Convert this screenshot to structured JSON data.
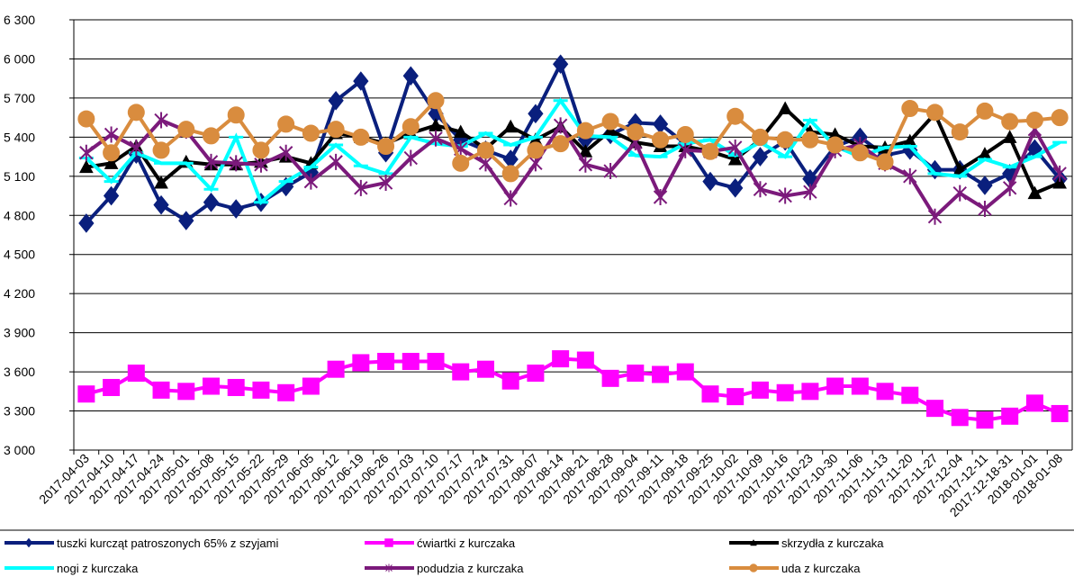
{
  "chart_data": {
    "type": "line",
    "categories": [
      "2017-04-03",
      "2017-04-10",
      "2017-04-17",
      "2017-04-24",
      "2017-05-01",
      "2017-05-08",
      "2017-05-15",
      "2017-05-22",
      "2017-05-29",
      "2017-06-05",
      "2017-06-12",
      "2017-06-19",
      "2017-06-26",
      "2017-07-03",
      "2017-07-10",
      "2017-07-17",
      "2017-07-24",
      "2017-07-31",
      "2017-08-07",
      "2017-08-14",
      "2017-08-21",
      "2017-08-28",
      "2017-09-04",
      "2017-09-11",
      "2017-09-18",
      "2017-09-25",
      "2017-10-02",
      "2017-10-09",
      "2017-10-16",
      "2017-10-23",
      "2017-10-30",
      "2017-11-06",
      "2017-11-13",
      "2017-11-20",
      "2017-11-27",
      "2017-12-04",
      "2017-12-11",
      "2017-12-18-31",
      "2018-01-01",
      "2018-01-08"
    ],
    "series": [
      {
        "name": "tuszki kurcząt patroszonych 65% z szyjami",
        "color": "#0a1f7d",
        "marker": "diamond",
        "values": [
          4740,
          4950,
          5270,
          4880,
          4760,
          4900,
          4850,
          4900,
          5020,
          5130,
          5680,
          5830,
          5280,
          5870,
          5580,
          5380,
          5300,
          5230,
          5580,
          5960,
          5380,
          5420,
          5510,
          5500,
          5350,
          5060,
          5010,
          5250,
          5370,
          5080,
          5330,
          5400,
          5260,
          5300,
          5150,
          5150,
          5030,
          5120,
          5310,
          5080
        ]
      },
      {
        "name": "ćwiartki z kurczaka",
        "color": "#ff00ff",
        "marker": "square",
        "values": [
          3430,
          3480,
          3590,
          3460,
          3450,
          3490,
          3480,
          3460,
          3440,
          3490,
          3620,
          3670,
          3680,
          3680,
          3680,
          3600,
          3620,
          3530,
          3590,
          3700,
          3690,
          3550,
          3590,
          3580,
          3600,
          3430,
          3410,
          3460,
          3440,
          3450,
          3490,
          3490,
          3450,
          3420,
          3320,
          3250,
          3230,
          3260,
          3360,
          3280
        ]
      },
      {
        "name": "skrzydła z kurczaka",
        "color": "#000000",
        "marker": "triangle",
        "values": [
          5170,
          5200,
          5330,
          5050,
          5210,
          5190,
          5190,
          5210,
          5250,
          5200,
          5430,
          5400,
          5350,
          5430,
          5490,
          5440,
          5310,
          5480,
          5380,
          5480,
          5290,
          5450,
          5360,
          5330,
          5330,
          5290,
          5230,
          5380,
          5620,
          5440,
          5420,
          5330,
          5320,
          5370,
          5580,
          5150,
          5270,
          5400,
          4970,
          5050
        ]
      },
      {
        "name": "nogi z kurczaka",
        "color": "#00ffff",
        "marker": "cross",
        "values": [
          5240,
          5060,
          5280,
          5200,
          5200,
          5000,
          5400,
          4900,
          5060,
          5170,
          5340,
          5180,
          5120,
          5400,
          5350,
          5330,
          5430,
          5340,
          5400,
          5680,
          5410,
          5400,
          5260,
          5250,
          5350,
          5380,
          5260,
          5360,
          5250,
          5530,
          5330,
          5250,
          5320,
          5330,
          5120,
          5100,
          5230,
          5170,
          5250,
          5360
        ]
      },
      {
        "name": "podudzia z kurczaka",
        "color": "#7b1a7b",
        "marker": "star",
        "values": [
          5280,
          5420,
          5320,
          5530,
          5450,
          5210,
          5200,
          5190,
          5280,
          5060,
          5210,
          5010,
          5050,
          5240,
          5390,
          5310,
          5200,
          4930,
          5200,
          5490,
          5190,
          5140,
          5360,
          4940,
          5300,
          5290,
          5320,
          5000,
          4950,
          4980,
          5300,
          5340,
          5200,
          5100,
          4790,
          4970,
          4850,
          5010,
          5460,
          5120
        ]
      },
      {
        "name": "uda z kurczaka",
        "color": "#d98c3e",
        "marker": "circle",
        "values": [
          5540,
          5280,
          5590,
          5300,
          5460,
          5410,
          5570,
          5300,
          5500,
          5430,
          5460,
          5400,
          5330,
          5480,
          5680,
          5200,
          5300,
          5120,
          5300,
          5350,
          5450,
          5520,
          5440,
          5380,
          5420,
          5290,
          5560,
          5400,
          5380,
          5380,
          5340,
          5280,
          5210,
          5620,
          5590,
          5440,
          5600,
          5520,
          5530,
          5550
        ]
      }
    ],
    "ylim": [
      3000,
      6300
    ],
    "yticks": [
      {
        "value": 3000,
        "label": "3 000"
      },
      {
        "value": 3300,
        "label": "3 300"
      },
      {
        "value": 3600,
        "label": "3 600"
      },
      {
        "value": 3900,
        "label": "3 900"
      },
      {
        "value": 4200,
        "label": "4 200"
      },
      {
        "value": 4500,
        "label": "4 500"
      },
      {
        "value": 4800,
        "label": "4 800"
      },
      {
        "value": 5100,
        "label": "5 100"
      },
      {
        "value": 5400,
        "label": "5 400"
      },
      {
        "value": 5700,
        "label": "5 700"
      },
      {
        "value": 6000,
        "label": "6 000"
      },
      {
        "value": 6300,
        "label": "6 300"
      }
    ],
    "grid": true,
    "legend": "bottom"
  }
}
